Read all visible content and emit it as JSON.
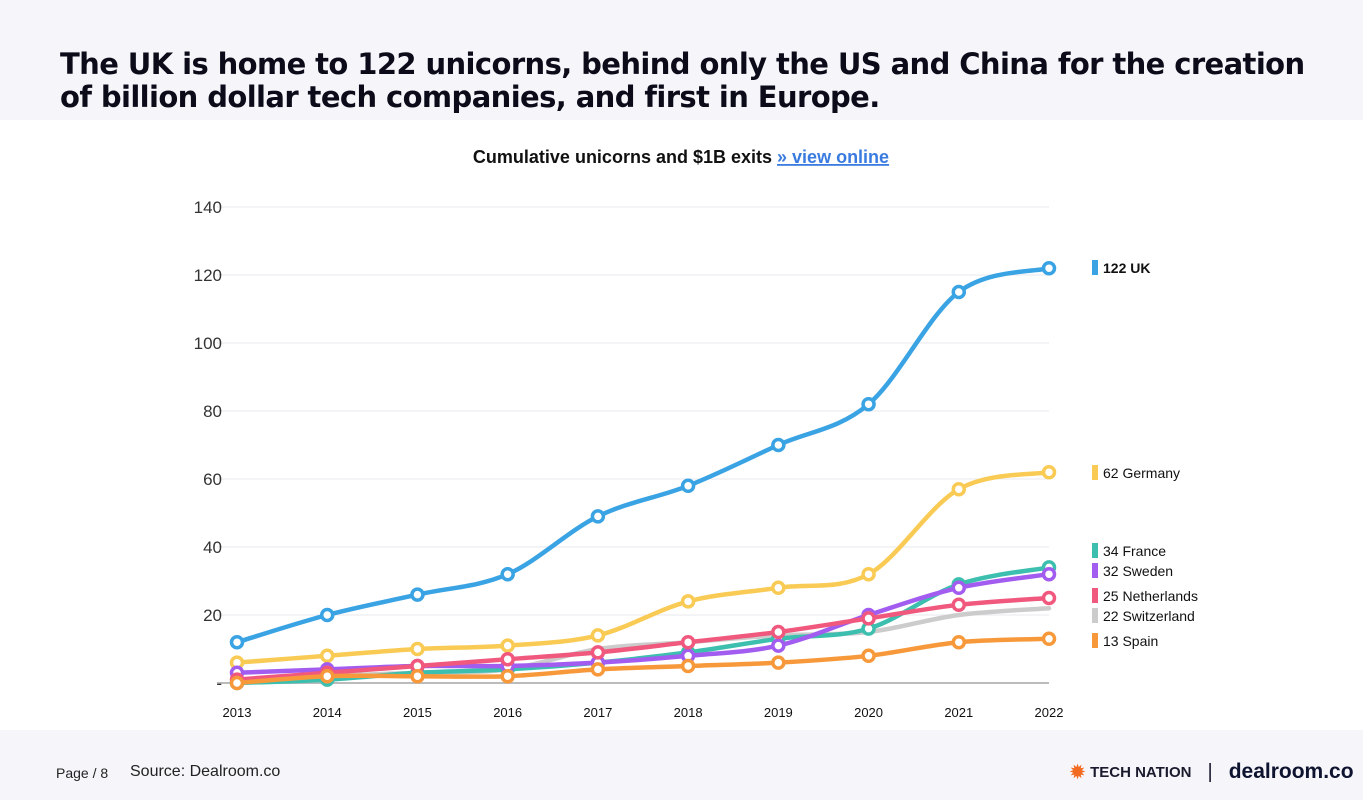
{
  "header": {
    "title": "The UK is home to 122 unicorns, behind only the US and China for the creation of billion dollar tech companies, and first in Europe."
  },
  "footer": {
    "page": "Page / 8",
    "source": "Source: Dealroom.co",
    "logo_tech_nation": "TECH NATION",
    "separator": "|",
    "logo_dealroom": "dealroom.co"
  },
  "chart_data": {
    "type": "line",
    "title": "Cumulative unicorns and $1B exits",
    "title_link": "» view online",
    "x": [
      2013,
      2014,
      2015,
      2016,
      2017,
      2018,
      2019,
      2020,
      2021,
      2022
    ],
    "ylim": [
      0,
      140
    ],
    "yticks": [
      {
        "v": 0,
        "label": "-"
      },
      {
        "v": 20,
        "label": "20"
      },
      {
        "v": 40,
        "label": "40"
      },
      {
        "v": 60,
        "label": "60"
      },
      {
        "v": 80,
        "label": "80"
      },
      {
        "v": 100,
        "label": "100"
      },
      {
        "v": 120,
        "label": "120"
      },
      {
        "v": 140,
        "label": "140"
      }
    ],
    "grid": true,
    "legend_placement": "right",
    "series": [
      {
        "name": "UK",
        "label": "122 UK",
        "color": "#3aa3e3",
        "markers": true,
        "values": [
          12,
          20,
          26,
          32,
          49,
          58,
          70,
          82,
          115,
          122
        ]
      },
      {
        "name": "Germany",
        "label": "62 Germany",
        "color": "#f9cb55",
        "markers": true,
        "values": [
          6,
          8,
          10,
          11,
          14,
          24,
          28,
          32,
          57,
          62
        ]
      },
      {
        "name": "Switzerland",
        "label": "22 Switzerland",
        "color": "#cccccc",
        "markers": false,
        "values": [
          0,
          2,
          3,
          4,
          10,
          12,
          14,
          15,
          20,
          22
        ]
      },
      {
        "name": "France",
        "label": "34 France",
        "color": "#3cbfae",
        "markers": true,
        "values": [
          0,
          1,
          3,
          4,
          6,
          9,
          13,
          16,
          29,
          34
        ]
      },
      {
        "name": "Sweden",
        "label": "32 Sweden",
        "color": "#a25cf0",
        "markers": true,
        "values": [
          3,
          4,
          5,
          5,
          6,
          8,
          11,
          20,
          28,
          32
        ]
      },
      {
        "name": "Netherlands",
        "label": "25 Netherlands",
        "color": "#f0587e",
        "markers": true,
        "values": [
          1,
          3,
          5,
          7,
          9,
          12,
          15,
          19,
          23,
          25
        ]
      },
      {
        "name": "Spain",
        "label": "13 Spain",
        "color": "#f7993a",
        "markers": true,
        "values": [
          0,
          2,
          2,
          2,
          4,
          5,
          6,
          8,
          12,
          13
        ]
      }
    ]
  }
}
